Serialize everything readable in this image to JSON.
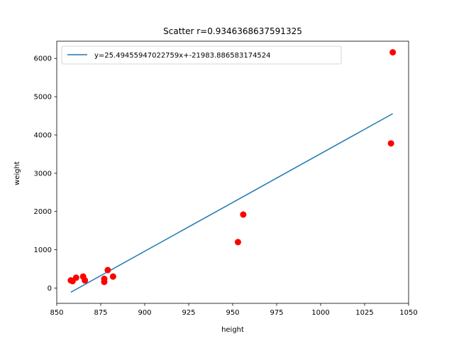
{
  "chart_data": {
    "type": "scatter",
    "title": "Scatter r=0.9346368637591325",
    "xlabel": "height",
    "ylabel": "weight",
    "xlim": [
      850,
      1050
    ],
    "ylim": [
      -400,
      6450
    ],
    "xticks": [
      850,
      875,
      900,
      925,
      950,
      975,
      1000,
      1025,
      1050
    ],
    "yticks": [
      0,
      1000,
      2000,
      3000,
      4000,
      5000,
      6000
    ],
    "legend_position": "top-left",
    "grid": false,
    "points": [
      {
        "x": 858,
        "y": 200
      },
      {
        "x": 859,
        "y": 180
      },
      {
        "x": 861,
        "y": 270
      },
      {
        "x": 865,
        "y": 300
      },
      {
        "x": 866,
        "y": 200
      },
      {
        "x": 877,
        "y": 160
      },
      {
        "x": 877,
        "y": 240
      },
      {
        "x": 879,
        "y": 470
      },
      {
        "x": 882,
        "y": 300
      },
      {
        "x": 953,
        "y": 1200
      },
      {
        "x": 956,
        "y": 1920
      },
      {
        "x": 1040,
        "y": 3780
      },
      {
        "x": 1041,
        "y": 6160
      }
    ],
    "fit_line": {
      "label": "y=25.49455947022759x+-21983.886583174524",
      "slope": 25.49455947022759,
      "intercept": -21983.886583174524,
      "x_start": 858,
      "x_end": 1041
    },
    "colors": {
      "points": "#ff0000",
      "line": "#1f77b4"
    }
  }
}
